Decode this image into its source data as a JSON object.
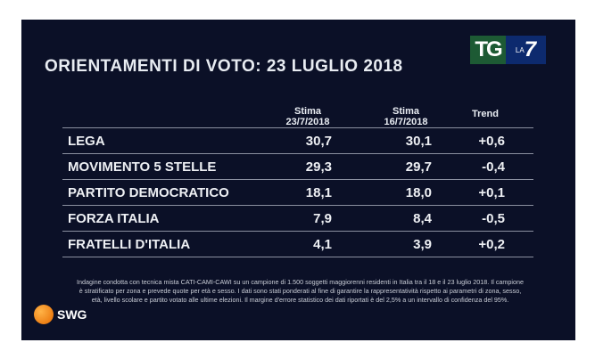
{
  "title": "ORIENTAMENTI DI VOTO: 23 LUGLIO 2018",
  "logo": {
    "tg": "TG",
    "la": "LA",
    "seven": "7"
  },
  "headers": {
    "col1_line1": "Stima",
    "col1_line2": "23/7/2018",
    "col2_line1": "Stima",
    "col2_line2": "16/7/2018",
    "trend": "Trend"
  },
  "rows": [
    {
      "party": "LEGA",
      "stima_23": "30,7",
      "stima_16": "30,1",
      "trend": "+0,6"
    },
    {
      "party": "MOVIMENTO 5 STELLE",
      "stima_23": "29,3",
      "stima_16": "29,7",
      "trend": "-0,4"
    },
    {
      "party": "PARTITO DEMOCRATICO",
      "stima_23": "18,1",
      "stima_16": "18,0",
      "trend": "+0,1"
    },
    {
      "party": "FORZA ITALIA",
      "stima_23": "7,9",
      "stima_16": "8,4",
      "trend": "-0,5"
    },
    {
      "party": "FRATELLI D'ITALIA",
      "stima_23": "4,1",
      "stima_16": "3,9",
      "trend": "+0,2"
    }
  ],
  "note": "Indagine condotta con tecnica mista CATI-CAMI-CAWI su un campione di 1.500 soggetti maggiorenni residenti in Italia tra il 18 e il 23 luglio 2018. Il campione è stratificato per zona e prevede quote per età e sesso. I dati sono stati ponderati al fine di garantire la rappresentatività rispetto ai parametri di zona, sesso, età, livello scolare e partito votato alle ultime elezioni. Il margine d'errore statistico dei dati riportati è del 2,5% a un intervallo di confidenza del 95%.",
  "brand": "SWG"
}
